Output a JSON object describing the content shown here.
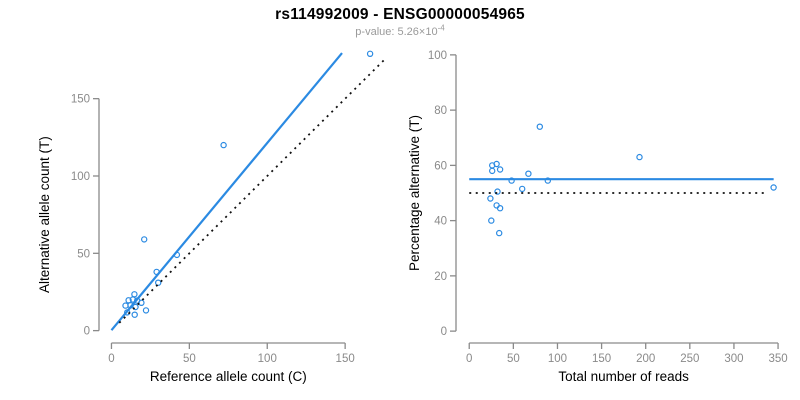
{
  "header": {
    "title": "rs114992009 - ENSG00000054965",
    "pvalue_label": "p-value: 5.26×10",
    "pvalue_exponent": "-4"
  },
  "colors": {
    "point_blue": "#2b8ae2",
    "line_blue": "#2b8ae2",
    "dotted_black": "#111111",
    "axis_gray": "#8a8a8a",
    "tick_label_gray": "#8a8a8a",
    "axis_title_color": "#000000"
  },
  "chart_data": [
    {
      "type": "scatter",
      "name": "allele-counts-scatter",
      "xlabel": "Reference allele count (C)",
      "ylabel": "Alternative allele count (T)",
      "xticks": [
        0,
        50,
        100,
        150
      ],
      "yticks": [
        0,
        50,
        100,
        150
      ],
      "xlim": [
        -8,
        182
      ],
      "ylim": [
        -8,
        186
      ],
      "grid": false,
      "legend": null,
      "points": [
        [
          9,
          16.2
        ],
        [
          10.1,
          11.8
        ],
        [
          11,
          19.6
        ],
        [
          12.2,
          16.4
        ],
        [
          13.7,
          20.1
        ],
        [
          14.7,
          23.5
        ],
        [
          14.9,
          10.3
        ],
        [
          15.4,
          15.3
        ],
        [
          16.5,
          19.4
        ],
        [
          19.2,
          18
        ],
        [
          22.2,
          13.1
        ],
        [
          21,
          59
        ],
        [
          29,
          38
        ],
        [
          30,
          31
        ],
        [
          42,
          49
        ],
        [
          72,
          120
        ],
        [
          166,
          179
        ]
      ],
      "lines": [
        {
          "name": "regression-line",
          "style": "solid",
          "color_key": "line_blue",
          "x1": 0,
          "y1": 0.3,
          "x2": 148,
          "y2": 179.5
        },
        {
          "name": "identity-line",
          "style": "dotted",
          "color_key": "dotted_black",
          "x1": 5,
          "y1": 5,
          "x2": 176,
          "y2": 176
        }
      ]
    },
    {
      "type": "scatter",
      "name": "percentage-vs-reads-scatter",
      "xlabel": "Total number of reads",
      "ylabel": "Percentage alternative (T)",
      "xticks": [
        0,
        50,
        100,
        150,
        200,
        250,
        300,
        350
      ],
      "yticks": [
        0,
        20,
        40,
        60,
        80,
        100
      ],
      "xlim": [
        -15,
        359
      ],
      "ylim": [
        -4.3,
        104.3
      ],
      "grid": false,
      "legend": null,
      "points": [
        [
          24,
          48
        ],
        [
          25,
          40
        ],
        [
          26,
          60
        ],
        [
          26,
          58
        ],
        [
          31,
          60.5
        ],
        [
          31,
          45.5
        ],
        [
          32,
          50.5
        ],
        [
          34,
          35.5
        ],
        [
          35,
          58.5
        ],
        [
          35,
          44.5
        ],
        [
          48,
          54.5
        ],
        [
          60,
          51.5
        ],
        [
          67,
          57
        ],
        [
          80,
          74
        ],
        [
          89,
          54.5
        ],
        [
          193,
          63
        ],
        [
          345,
          52
        ]
      ],
      "lines": [
        {
          "name": "mean-percentage-line",
          "style": "solid",
          "color_key": "line_blue",
          "x1": 0,
          "y1": 55,
          "x2": 345,
          "y2": 55
        },
        {
          "name": "expected-50-line",
          "style": "dotted",
          "color_key": "dotted_black",
          "x1": 0,
          "y1": 50,
          "x2": 338,
          "y2": 50
        }
      ]
    }
  ]
}
